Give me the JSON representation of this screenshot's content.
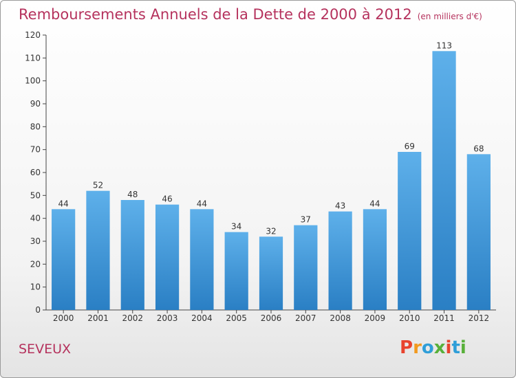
{
  "header": {
    "title": "Remboursements Annuels de la Dette de 2000 à 2012",
    "subtitle": "(en milliers d'€)"
  },
  "footer": {
    "commune": "SEVEUX",
    "logo_text": "Proxiti",
    "logo_colors": [
      "#e8432e",
      "#f29a1f",
      "#2f9ed8",
      "#58b03a",
      "#e8432e",
      "#2f9ed8",
      "#58b03a"
    ]
  },
  "chart_data": {
    "type": "bar",
    "title": "Remboursements Annuels de la Dette de 2000 à 2012",
    "subtitle": "(en milliers d'€)",
    "categories": [
      "2000",
      "2001",
      "2002",
      "2003",
      "2004",
      "2005",
      "2006",
      "2007",
      "2008",
      "2009",
      "2010",
      "2011",
      "2012"
    ],
    "values": [
      44,
      52,
      48,
      46,
      44,
      34,
      32,
      37,
      43,
      44,
      69,
      113,
      68
    ],
    "ylim": [
      0,
      120
    ],
    "yticks": [
      0,
      10,
      20,
      30,
      40,
      50,
      60,
      70,
      80,
      90,
      100,
      110,
      120
    ],
    "grid": false,
    "bar_color_top": "#5eb0ea",
    "bar_color_bottom": "#2a7fc4",
    "axis_color": "#444444"
  }
}
